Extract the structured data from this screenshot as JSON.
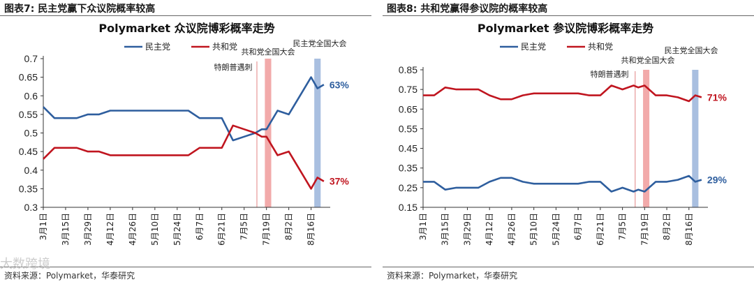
{
  "figures": [
    {
      "figure_title": "图表7:   民主党赢下众议院概率较高",
      "source": "资料来源：Polymarket，华泰研究",
      "chart_data": {
        "type": "line",
        "title": "Polymarket 众议院博彩概率走势",
        "xlabel": "",
        "ylabel": "",
        "ylim": [
          0.3,
          0.7
        ],
        "yticks": [
          "0.7",
          "0.65",
          "0.6",
          "0.55",
          "0.5",
          "0.45",
          "0.4",
          "0.35",
          "0.3"
        ],
        "ytick_values": [
          0.7,
          0.65,
          0.6,
          0.55,
          0.5,
          0.45,
          0.4,
          0.35,
          0.3
        ],
        "xticks": [
          "3月1日",
          "3月15日",
          "3月29日",
          "4月12日",
          "4月26日",
          "5月10日",
          "5月24日",
          "6月7日",
          "6月21日",
          "7月5日",
          "7月19日",
          "8月2日",
          "8月16日"
        ],
        "xtick_days": [
          0,
          14,
          28,
          42,
          56,
          70,
          84,
          98,
          112,
          126,
          140,
          154,
          168
        ],
        "grid": false,
        "legend_position": "top-center",
        "series": [
          {
            "name": "民主党",
            "color": "#2e5e9e",
            "x": [
              0,
              7,
              14,
              21,
              28,
              35,
              42,
              49,
              56,
              63,
              70,
              77,
              84,
              91,
              98,
              105,
              112,
              119,
              126,
              133,
              137,
              140,
              147,
              154,
              161,
              168,
              172,
              176
            ],
            "values": [
              0.57,
              0.54,
              0.54,
              0.54,
              0.55,
              0.55,
              0.56,
              0.56,
              0.56,
              0.56,
              0.56,
              0.56,
              0.56,
              0.56,
              0.54,
              0.54,
              0.54,
              0.48,
              0.49,
              0.5,
              0.51,
              0.51,
              0.56,
              0.55,
              0.6,
              0.65,
              0.62,
              0.63
            ],
            "end_label": "63%"
          },
          {
            "name": "共和党",
            "color": "#c0151f",
            "x": [
              0,
              7,
              14,
              21,
              28,
              35,
              42,
              49,
              56,
              63,
              70,
              77,
              84,
              91,
              98,
              105,
              112,
              119,
              126,
              133,
              137,
              140,
              147,
              154,
              161,
              168,
              172,
              176
            ],
            "values": [
              0.43,
              0.46,
              0.46,
              0.46,
              0.45,
              0.45,
              0.44,
              0.44,
              0.44,
              0.44,
              0.44,
              0.44,
              0.44,
              0.44,
              0.46,
              0.46,
              0.46,
              0.52,
              0.51,
              0.5,
              0.49,
              0.49,
              0.44,
              0.45,
              0.4,
              0.35,
              0.38,
              0.37
            ],
            "end_label": "37%"
          }
        ],
        "events": [
          {
            "label": "特朗普遇刺",
            "day": 134,
            "color": "#e8a0a0",
            "kind": "line"
          },
          {
            "label": "共和党全国大会",
            "day": 139,
            "color": "#f2aaaa",
            "kind": "band",
            "span": 4
          },
          {
            "label": "民主党全国大会",
            "day": 170,
            "color": "#a9bfe0",
            "kind": "band",
            "span": 4
          }
        ]
      }
    },
    {
      "figure_title": "图表8:   共和党赢得参议院的概率较高",
      "source": "资料来源：Polymarket，华泰研究",
      "chart_data": {
        "type": "line",
        "title": "Polymarket 参议院博彩概率走势",
        "xlabel": "",
        "ylabel": "",
        "ylim": [
          0.15,
          0.85
        ],
        "yticks": [
          "0.85",
          "0.75",
          "0.65",
          "0.55",
          "0.45",
          "0.35",
          "0.25",
          "0.15"
        ],
        "ytick_values": [
          0.85,
          0.75,
          0.65,
          0.55,
          0.45,
          0.35,
          0.25,
          0.15
        ],
        "xticks": [
          "3月1日",
          "3月15日",
          "3月29日",
          "4月12日",
          "4月26日",
          "5月10日",
          "5月24日",
          "6月7日",
          "6月21日",
          "7月5日",
          "7月19日",
          "8月2日",
          "8月16日"
        ],
        "xtick_days": [
          0,
          14,
          28,
          42,
          56,
          70,
          84,
          98,
          112,
          126,
          140,
          154,
          168
        ],
        "grid": false,
        "legend_position": "top-center",
        "series": [
          {
            "name": "民主党",
            "color": "#2e5e9e",
            "x": [
              0,
              7,
              14,
              21,
              28,
              35,
              42,
              49,
              56,
              63,
              70,
              77,
              84,
              91,
              98,
              105,
              112,
              119,
              126,
              133,
              136,
              140,
              147,
              154,
              161,
              168,
              172,
              176
            ],
            "values": [
              0.28,
              0.28,
              0.24,
              0.25,
              0.25,
              0.25,
              0.28,
              0.3,
              0.3,
              0.28,
              0.27,
              0.27,
              0.27,
              0.27,
              0.27,
              0.28,
              0.28,
              0.23,
              0.25,
              0.23,
              0.24,
              0.23,
              0.28,
              0.28,
              0.29,
              0.31,
              0.28,
              0.29
            ],
            "end_label": "29%"
          },
          {
            "name": "共和党",
            "color": "#c0151f",
            "x": [
              0,
              7,
              14,
              21,
              28,
              35,
              42,
              49,
              56,
              63,
              70,
              77,
              84,
              91,
              98,
              105,
              112,
              119,
              126,
              133,
              136,
              140,
              147,
              154,
              161,
              168,
              172,
              176
            ],
            "values": [
              0.72,
              0.72,
              0.76,
              0.75,
              0.75,
              0.75,
              0.72,
              0.7,
              0.7,
              0.72,
              0.73,
              0.73,
              0.73,
              0.73,
              0.73,
              0.72,
              0.72,
              0.77,
              0.75,
              0.77,
              0.76,
              0.77,
              0.72,
              0.72,
              0.71,
              0.69,
              0.72,
              0.71
            ],
            "end_label": "71%"
          }
        ],
        "events": [
          {
            "label": "特朗普遇刺",
            "day": 134,
            "color": "#e8a0a0",
            "kind": "line"
          },
          {
            "label": "共和党全国大会",
            "day": 139,
            "color": "#f2aaaa",
            "kind": "band",
            "span": 4
          },
          {
            "label": "民主党全国大会",
            "day": 170,
            "color": "#a9bfe0",
            "kind": "band",
            "span": 4
          }
        ]
      }
    }
  ],
  "watermark": "大数跨境",
  "colors": {
    "dem": "#2e5e9e",
    "rep": "#c0151f",
    "axis": "#333333"
  }
}
